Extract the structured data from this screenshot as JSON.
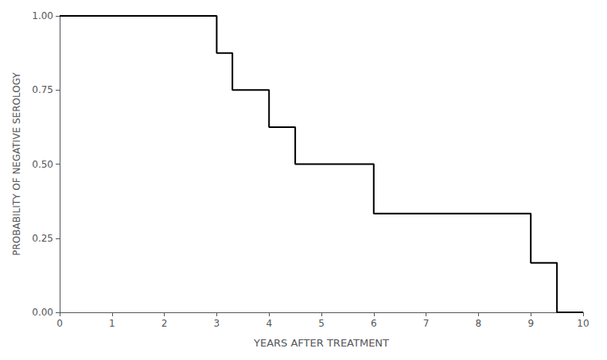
{
  "chart_data": {
    "type": "line",
    "x": [
      0,
      3.0,
      3.0,
      3.3,
      3.3,
      4.0,
      4.0,
      4.5,
      4.5,
      5.0,
      5.0,
      6.0,
      6.0,
      8.0,
      8.0,
      9.0,
      9.0,
      9.5,
      9.5,
      10.0
    ],
    "values": [
      1.0,
      1.0,
      0.875,
      0.875,
      0.75,
      0.75,
      0.625,
      0.625,
      0.5,
      0.5,
      0.5,
      0.5,
      0.333,
      0.333,
      0.333,
      0.333,
      0.167,
      0.167,
      0.0,
      0.0
    ],
    "color": "#000000",
    "xlabel": "YEARS AFTER TREATMENT",
    "ylabel": "PROBABILITY OF NEGATIVE SEROLOGY",
    "xlim": [
      0,
      10
    ],
    "ylim": [
      0.0,
      1.0
    ],
    "xticks": [
      0,
      1,
      2,
      3,
      4,
      5,
      6,
      7,
      8,
      9,
      10
    ],
    "yticks": [
      {
        "value": 0,
        "label": "0.00"
      },
      0.25,
      {
        "value": 0.5,
        "label": "0.50"
      },
      0.75,
      {
        "value": 1,
        "label": "1.00"
      }
    ],
    "grid": false
  }
}
